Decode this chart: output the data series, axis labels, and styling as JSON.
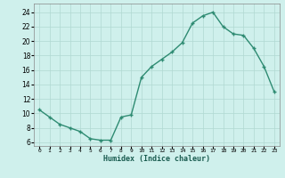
{
  "x": [
    0,
    1,
    2,
    3,
    4,
    5,
    6,
    7,
    8,
    9,
    10,
    11,
    12,
    13,
    14,
    15,
    16,
    17,
    18,
    19,
    20,
    21,
    22,
    23
  ],
  "y": [
    10.5,
    9.5,
    8.5,
    8.0,
    7.5,
    6.5,
    6.3,
    6.3,
    9.5,
    9.8,
    15.0,
    16.5,
    17.5,
    18.5,
    19.8,
    22.5,
    23.5,
    24.0,
    22.0,
    21.0,
    20.8,
    19.0,
    16.5,
    13.0
  ],
  "line_color": "#2e8b72",
  "marker": "+",
  "markersize": 3.5,
  "markeredgewidth": 1.0,
  "linewidth": 1.0,
  "bg_color": "#cff0ec",
  "grid_color": "#b0d8d2",
  "xlabel": "Humidex (Indice chaleur)",
  "ylabel_ticks": [
    6,
    8,
    10,
    12,
    14,
    16,
    18,
    20,
    22,
    24
  ],
  "xtick_labels": [
    "0",
    "1",
    "2",
    "3",
    "4",
    "5",
    "6",
    "7",
    "8",
    "9",
    "10",
    "11",
    "12",
    "13",
    "14",
    "15",
    "16",
    "17",
    "18",
    "19",
    "20",
    "21",
    "22",
    "23"
  ],
  "xlim": [
    -0.5,
    23.5
  ],
  "ylim": [
    5.5,
    25.2
  ]
}
